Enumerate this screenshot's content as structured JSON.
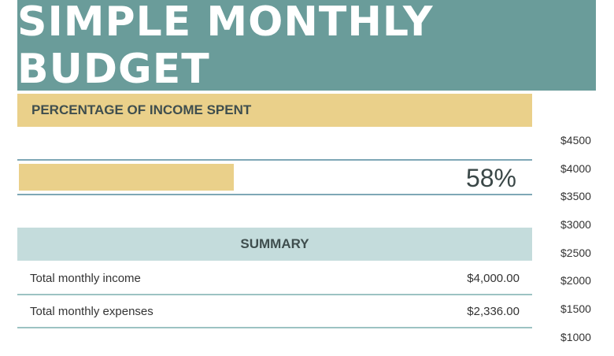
{
  "title": "SIMPLE MONTHLY BUDGET",
  "percentage": {
    "header": "PERCENTAGE OF INCOME SPENT",
    "value_label": "58%",
    "fraction": 0.58
  },
  "summary": {
    "header": "SUMMARY",
    "rows": [
      {
        "label": "Total monthly income",
        "value": "$4,000.00"
      },
      {
        "label": "Total monthly expenses",
        "value": "$2,336.00"
      }
    ]
  },
  "axis_ticks": [
    "$4500",
    "$4000",
    "$3500",
    "$3000",
    "$2500",
    "$2000",
    "$1500",
    "$1000"
  ],
  "colors": {
    "title_bg": "#6a9c9a",
    "accent_yellow": "#ead08a",
    "summary_bg": "#c4dcdc"
  }
}
